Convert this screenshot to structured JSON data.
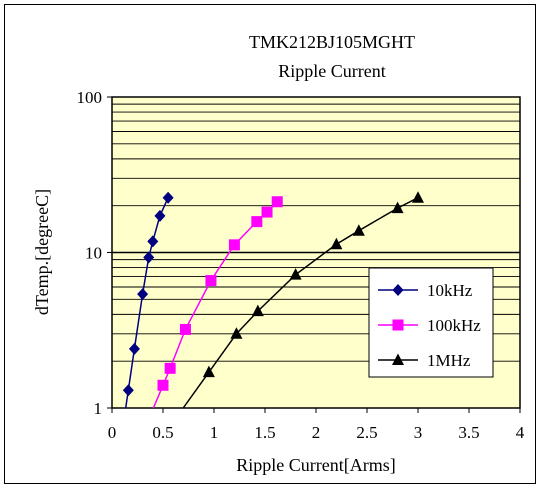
{
  "chart_data": {
    "type": "scatter",
    "title": "TMK212BJ105MGHT",
    "subtitle": "Ripple Current",
    "xlabel": "Ripple Current[Arms]",
    "ylabel": "dTemp.[degreeC]",
    "xlim": [
      0,
      4
    ],
    "ylim": [
      1,
      100
    ],
    "y_scale": "log",
    "x_ticks": [
      "0",
      "0.5",
      "1",
      "1.5",
      "2",
      "2.5",
      "3",
      "3.5",
      "4"
    ],
    "y_ticks": [
      "1",
      "10",
      "100"
    ],
    "grid": true,
    "legend_position": "right",
    "plot_background": "#ffffcc",
    "series": [
      {
        "name": "10kHz",
        "color": "#000080",
        "marker": "diamond",
        "points": [
          [
            0.16,
            1.3
          ],
          [
            0.22,
            2.4
          ],
          [
            0.3,
            5.4
          ],
          [
            0.36,
            9.3
          ],
          [
            0.4,
            11.8
          ],
          [
            0.47,
            17.2
          ],
          [
            0.55,
            22.5
          ]
        ]
      },
      {
        "name": "100kHz",
        "color": "#ff00ff",
        "marker": "square",
        "points": [
          [
            0.5,
            1.4
          ],
          [
            0.57,
            1.8
          ],
          [
            0.72,
            3.2
          ],
          [
            0.97,
            6.6
          ],
          [
            1.2,
            11.2
          ],
          [
            1.42,
            15.8
          ],
          [
            1.52,
            18.2
          ],
          [
            1.62,
            21.2
          ]
        ]
      },
      {
        "name": "1MHz",
        "color": "#000000",
        "marker": "triangle",
        "points": [
          [
            0.95,
            1.7
          ],
          [
            1.22,
            3.0
          ],
          [
            1.43,
            4.2
          ],
          [
            1.8,
            7.2
          ],
          [
            2.2,
            11.3
          ],
          [
            2.42,
            13.8
          ],
          [
            2.8,
            19.3
          ],
          [
            3.0,
            22.5
          ]
        ]
      }
    ]
  }
}
